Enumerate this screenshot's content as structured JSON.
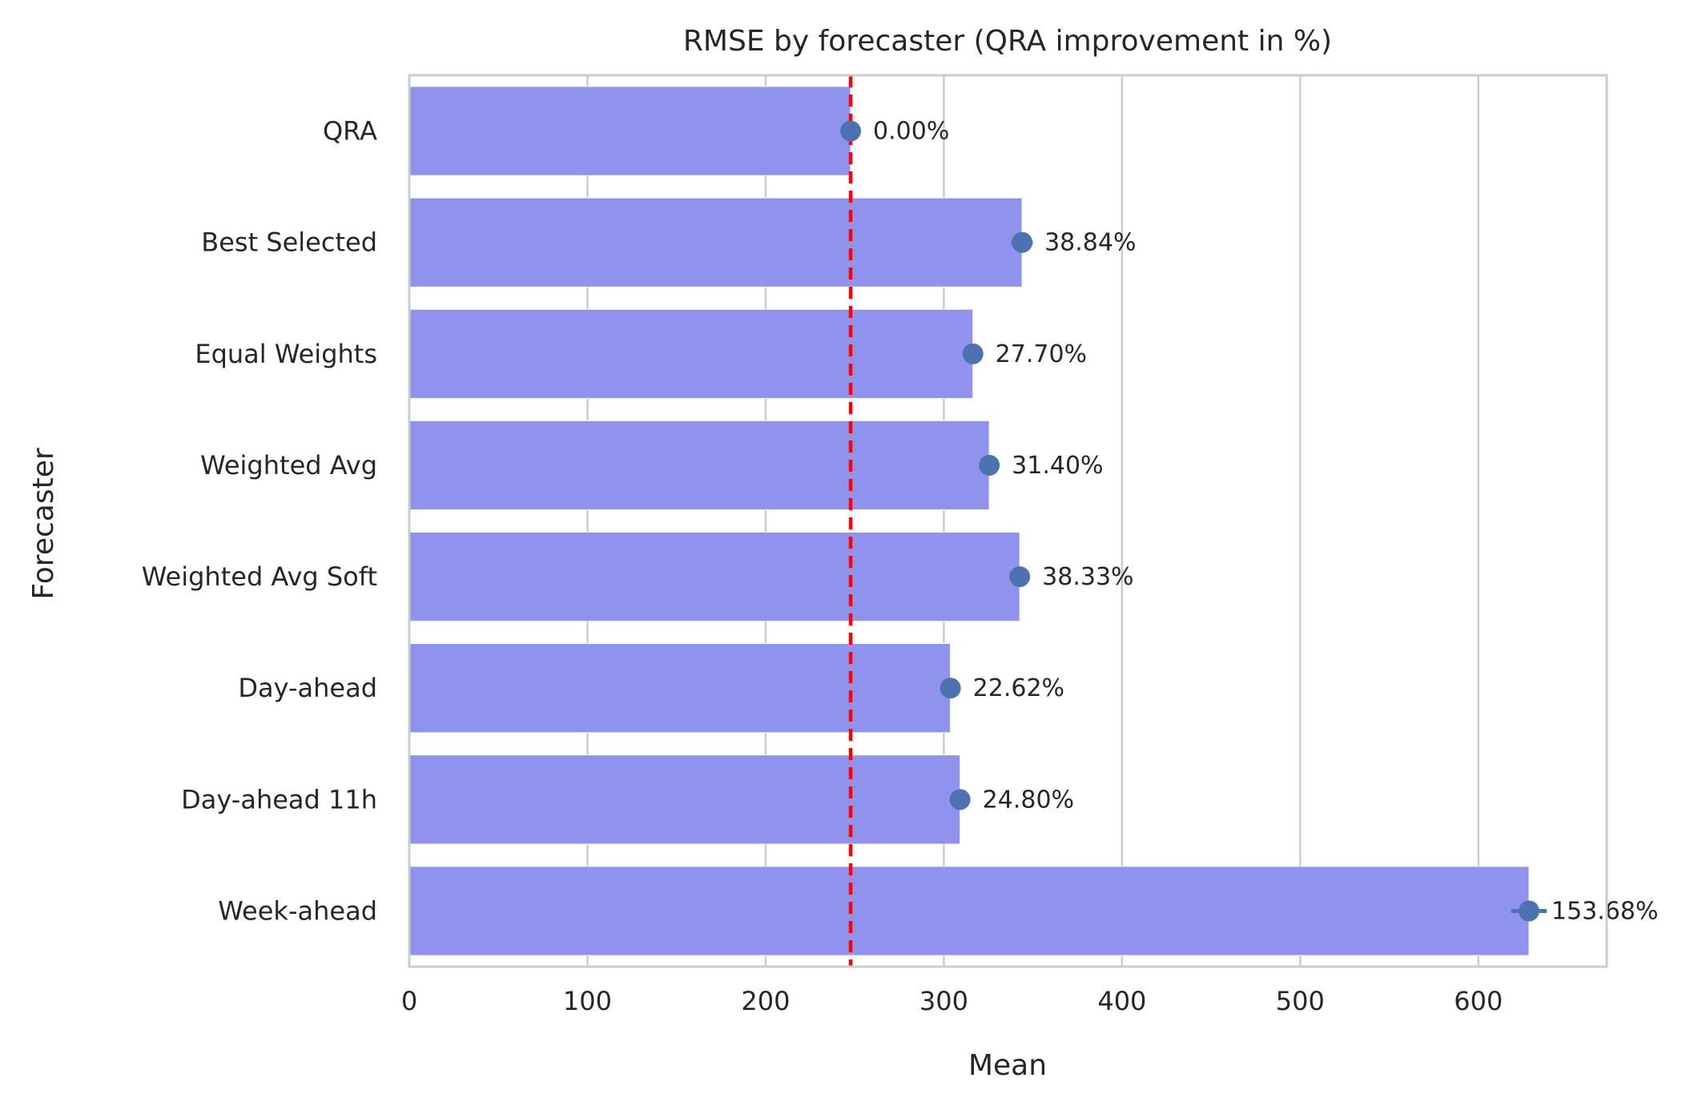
{
  "chart_data": {
    "type": "bar",
    "orientation": "horizontal",
    "title": "RMSE by forecaster (QRA improvement in %)",
    "xlabel": "Mean",
    "ylabel": "Forecaster",
    "xlim": [
      0,
      672
    ],
    "x_ticks": [
      0,
      100,
      200,
      300,
      400,
      500,
      600
    ],
    "grid": "vertical",
    "categories": [
      "QRA",
      "Best Selected",
      "Equal Weights",
      "Weighted Avg",
      "Weighted Avg Soft",
      "Day-ahead",
      "Day-ahead 11h",
      "Week-ahead"
    ],
    "values": [
      247.7,
      343.9,
      316.3,
      325.5,
      342.6,
      303.7,
      309.1,
      628.4
    ],
    "point_values": [
      247.7,
      343.9,
      316.3,
      325.5,
      342.6,
      303.7,
      309.1,
      628.4
    ],
    "error_halfwidth": [
      0,
      6,
      0,
      0,
      0,
      0,
      0,
      10
    ],
    "data_labels": [
      "0.00%",
      "38.84%",
      "27.70%",
      "31.40%",
      "38.33%",
      "22.62%",
      "24.80%",
      "153.68%"
    ],
    "reference_line": {
      "x": 247.7,
      "style": "dashed",
      "color": "#ff0000"
    },
    "colors": {
      "bar": "#8c8fec",
      "point": "#4c72b0",
      "grid": "#cccccc",
      "spine": "#cccccc"
    }
  }
}
